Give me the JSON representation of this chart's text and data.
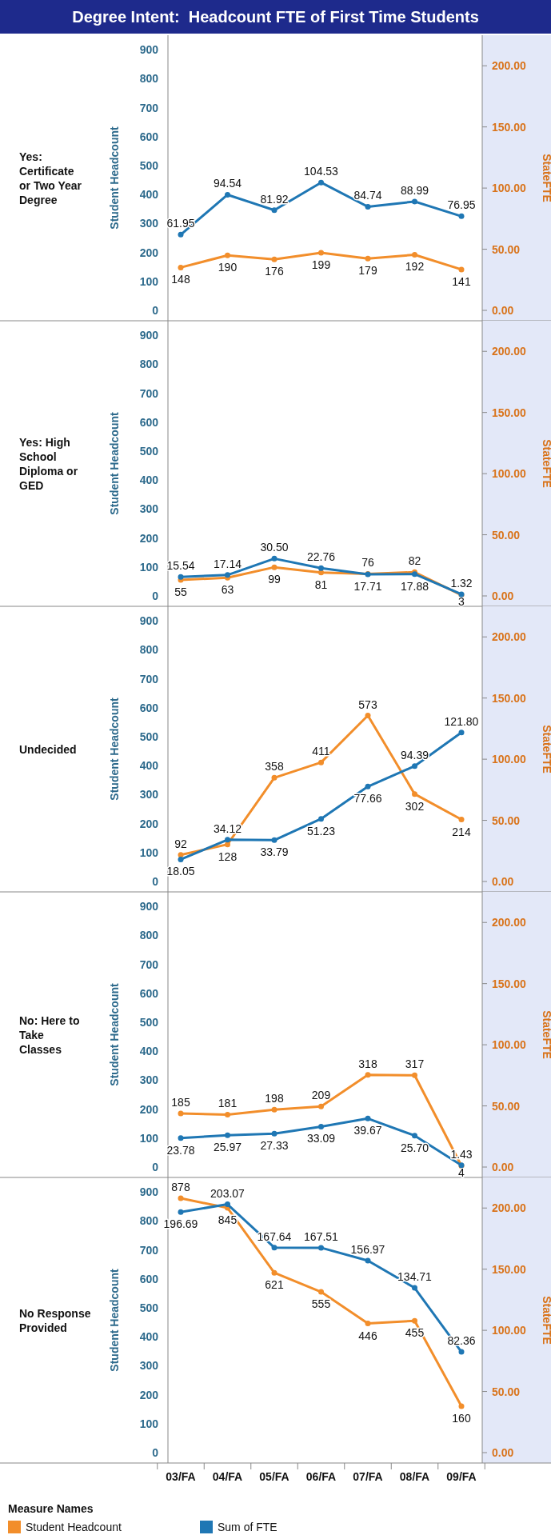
{
  "chart_data": [
    {
      "type": "line",
      "title": "Degree Intent:  Headcount FTE of First Time Students",
      "subtitle": "Yes: Certificate or Two Year Degree",
      "ylabel": "Student Headcount",
      "y2label": "StateFTE",
      "categories": [
        null,
        null,
        null,
        null,
        null,
        null,
        null
      ],
      "tick_labels": "y",
      "marker": "circle",
      "ylim": [
        0,
        950
      ],
      "yticks": [
        0,
        100,
        200,
        300,
        400,
        500,
        600,
        700,
        800,
        900
      ],
      "y2lim": [
        0,
        225
      ],
      "y2ticks": [
        {
          "value": 0,
          "label": "0.00"
        },
        {
          "value": 50,
          "label": "50.00"
        },
        {
          "value": 100,
          "label": "100.00"
        },
        {
          "value": 150,
          "label": "150.00"
        },
        {
          "value": 200,
          "label": "200.00"
        }
      ],
      "series": [
        {
          "color": "#f28e2b",
          "values": [
            148,
            190,
            176,
            199,
            179,
            192,
            141
          ],
          "value_labels": [
            "148",
            "190",
            "176",
            "199",
            "179",
            "192",
            "141"
          ]
        },
        {
          "color": "#1f77b4",
          "axis": "y2",
          "values": [
            61.95,
            94.54,
            81.92,
            104.53,
            84.74,
            88.99,
            76.95
          ],
          "value_labels": [
            "61.95",
            "94.54",
            "81.92",
            "104.53",
            "84.74",
            "88.99",
            "76.95"
          ]
        }
      ]
    },
    {
      "type": "line",
      "subtitle": "Yes: High School Diploma or GED",
      "ylabel": "Student Headcount",
      "y2label": "StateFTE",
      "categories": [
        null,
        null,
        null,
        null,
        null,
        null,
        null
      ],
      "tick_labels": "y",
      "marker": "circle",
      "ylim": [
        0,
        950
      ],
      "yticks": [
        0,
        100,
        200,
        300,
        400,
        500,
        600,
        700,
        800,
        900
      ],
      "y2lim": [
        0,
        225
      ],
      "y2ticks": [
        {
          "value": 0,
          "label": "0.00"
        },
        {
          "value": 50,
          "label": "50.00"
        },
        {
          "value": 100,
          "label": "100.00"
        },
        {
          "value": 150,
          "label": "150.00"
        },
        {
          "value": 200,
          "label": "200.00"
        }
      ],
      "series": [
        {
          "color": "#f28e2b",
          "values": [
            55,
            63,
            99,
            81,
            76,
            82,
            3
          ],
          "value_labels": [
            "55",
            "63",
            "99",
            "81",
            "76",
            "82",
            "3"
          ]
        },
        {
          "color": "#1f77b4",
          "axis": "y2",
          "values": [
            15.54,
            17.14,
            30.5,
            22.76,
            17.71,
            17.88,
            1.32
          ],
          "value_labels": [
            "15.54",
            "17.14",
            "30.50",
            "22.76",
            "17.71",
            "17.88",
            "1.32"
          ]
        }
      ]
    },
    {
      "type": "line",
      "subtitle": "Undecided",
      "ylabel": "Student Headcount",
      "y2label": "StateFTE",
      "categories": [
        null,
        null,
        null,
        null,
        null,
        null,
        null
      ],
      "tick_labels": "y",
      "marker": "circle",
      "ylim": [
        0,
        950
      ],
      "yticks": [
        0,
        100,
        200,
        300,
        400,
        500,
        600,
        700,
        800,
        900
      ],
      "y2lim": [
        0,
        225
      ],
      "y2ticks": [
        {
          "value": 0,
          "label": "0.00"
        },
        {
          "value": 50,
          "label": "50.00"
        },
        {
          "value": 100,
          "label": "100.00"
        },
        {
          "value": 150,
          "label": "150.00"
        },
        {
          "value": 200,
          "label": "200.00"
        }
      ],
      "series": [
        {
          "color": "#f28e2b",
          "values": [
            92,
            128,
            358,
            411,
            573,
            302,
            214
          ],
          "value_labels": [
            "92",
            "128",
            "358",
            "411",
            "573",
            "302",
            "214"
          ]
        },
        {
          "color": "#1f77b4",
          "axis": "y2",
          "values": [
            18.05,
            34.12,
            33.79,
            51.23,
            77.66,
            94.39,
            121.8
          ],
          "value_labels": [
            "18.05",
            "34.12",
            "33.79",
            "51.23",
            "77.66",
            "94.39",
            "121.80"
          ]
        }
      ]
    },
    {
      "type": "line",
      "subtitle": "No: Here to Take Classes",
      "ylabel": "Student Headcount",
      "y2label": "StateFTE",
      "categories": [
        null,
        null,
        null,
        null,
        null,
        null,
        null
      ],
      "tick_labels": "y",
      "marker": "circle",
      "ylim": [
        0,
        950
      ],
      "yticks": [
        0,
        100,
        200,
        300,
        400,
        500,
        600,
        700,
        800,
        900
      ],
      "y2lim": [
        0,
        225
      ],
      "y2ticks": [
        {
          "value": 0,
          "label": "0.00"
        },
        {
          "value": 50,
          "label": "50.00"
        },
        {
          "value": 100,
          "label": "100.00"
        },
        {
          "value": 150,
          "label": "150.00"
        },
        {
          "value": 200,
          "label": "200.00"
        }
      ],
      "series": [
        {
          "color": "#f28e2b",
          "values": [
            185,
            181,
            198,
            209,
            318,
            317,
            4
          ],
          "value_labels": [
            "185",
            "181",
            "198",
            "209",
            "318",
            "317",
            "4"
          ]
        },
        {
          "color": "#1f77b4",
          "axis": "y2",
          "values": [
            23.78,
            25.97,
            27.33,
            33.09,
            39.67,
            25.7,
            1.43
          ],
          "value_labels": [
            "23.78",
            "25.97",
            "27.33",
            "33.09",
            "39.67",
            "25.70",
            "1.43"
          ]
        }
      ]
    },
    {
      "type": "line",
      "subtitle": "No Response Provided",
      "ylabel": "Student Headcount",
      "y2label": "StateFTE",
      "categories": [
        "03/FA",
        "04/FA",
        "05/FA",
        "06/FA",
        "07/FA",
        "08/FA",
        "09/FA"
      ],
      "marker": "circle",
      "legend": "bottom",
      "legend_title": "Measure Names",
      "ylim": [
        0,
        950
      ],
      "yticks": [
        0,
        100,
        200,
        300,
        400,
        500,
        600,
        700,
        800,
        900
      ],
      "y2lim": [
        0,
        225
      ],
      "y2ticks": [
        {
          "value": 0,
          "label": "0.00"
        },
        {
          "value": 50,
          "label": "50.00"
        },
        {
          "value": 100,
          "label": "100.00"
        },
        {
          "value": 150,
          "label": "150.00"
        },
        {
          "value": 200,
          "label": "200.00"
        }
      ],
      "series": [
        {
          "name": "Student Headcount",
          "color": "#f28e2b",
          "values": [
            878,
            845,
            621,
            555,
            446,
            455,
            160
          ],
          "value_labels": [
            "878",
            "845",
            "621",
            "555",
            "446",
            "455",
            "160"
          ]
        },
        {
          "name": "Sum of FTE",
          "color": "#1f77b4",
          "axis": "y2",
          "values": [
            196.69,
            203.07,
            167.64,
            167.51,
            156.97,
            134.71,
            82.36
          ],
          "value_labels": [
            "196.69",
            "203.07",
            "167.64",
            "167.51",
            "156.97",
            "134.71",
            "82.36"
          ]
        }
      ]
    }
  ]
}
